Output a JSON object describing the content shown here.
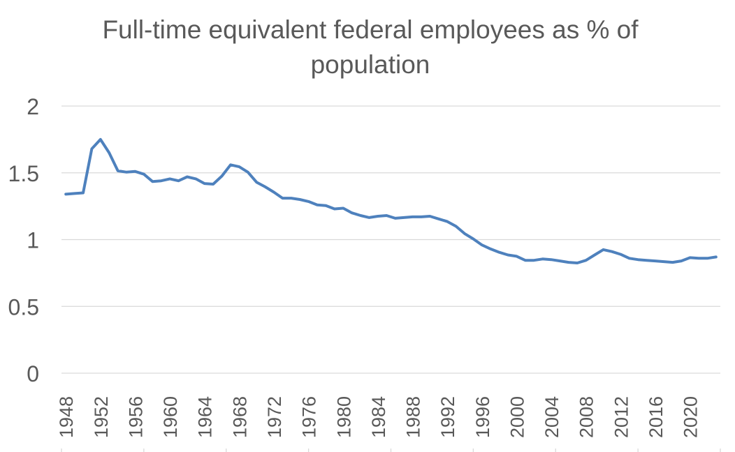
{
  "chart_data": {
    "type": "line",
    "title_lines": [
      "Full-time equivalent federal employees as % of",
      "population"
    ],
    "xlabel": "",
    "ylabel": "",
    "ylim": [
      0,
      2
    ],
    "yticks": [
      "0",
      "0.5",
      "1",
      "1.5",
      "2"
    ],
    "xticks": [
      "1948",
      "1952",
      "1956",
      "1960",
      "1964",
      "1968",
      "1972",
      "1976",
      "1980",
      "1984",
      "1988",
      "1992",
      "1996",
      "2000",
      "2004",
      "2008",
      "2012",
      "2016",
      "2020"
    ],
    "grid": true,
    "legend": "none",
    "series": [
      {
        "name": "FTE federal employees as % of population",
        "color": "#4e81bd",
        "x": [
          1948,
          1949,
          1950,
          1951,
          1952,
          1953,
          1954,
          1955,
          1956,
          1957,
          1958,
          1959,
          1960,
          1961,
          1962,
          1963,
          1964,
          1965,
          1966,
          1967,
          1968,
          1969,
          1970,
          1971,
          1972,
          1973,
          1974,
          1975,
          1976,
          1977,
          1978,
          1979,
          1980,
          1981,
          1982,
          1983,
          1984,
          1985,
          1986,
          1987,
          1988,
          1989,
          1990,
          1991,
          1992,
          1993,
          1994,
          1995,
          1996,
          1997,
          1998,
          1999,
          2000,
          2001,
          2002,
          2003,
          2004,
          2005,
          2006,
          2007,
          2008,
          2009,
          2010,
          2011,
          2012,
          2013,
          2014,
          2015,
          2016,
          2017,
          2018,
          2019,
          2020,
          2021,
          2022,
          2023
        ],
        "values": [
          1.34,
          1.345,
          1.35,
          1.68,
          1.75,
          1.65,
          1.515,
          1.505,
          1.51,
          1.49,
          1.435,
          1.44,
          1.455,
          1.44,
          1.47,
          1.455,
          1.42,
          1.415,
          1.475,
          1.56,
          1.545,
          1.505,
          1.43,
          1.395,
          1.355,
          1.31,
          1.31,
          1.3,
          1.285,
          1.26,
          1.255,
          1.23,
          1.235,
          1.2,
          1.18,
          1.165,
          1.175,
          1.18,
          1.16,
          1.165,
          1.17,
          1.17,
          1.175,
          1.155,
          1.135,
          1.1,
          1.045,
          1.005,
          0.96,
          0.93,
          0.905,
          0.885,
          0.875,
          0.845,
          0.845,
          0.855,
          0.85,
          0.84,
          0.83,
          0.825,
          0.845,
          0.885,
          0.925,
          0.91,
          0.89,
          0.86,
          0.85,
          0.845,
          0.84,
          0.835,
          0.83,
          0.84,
          0.865,
          0.86,
          0.86,
          0.87
        ]
      }
    ]
  }
}
